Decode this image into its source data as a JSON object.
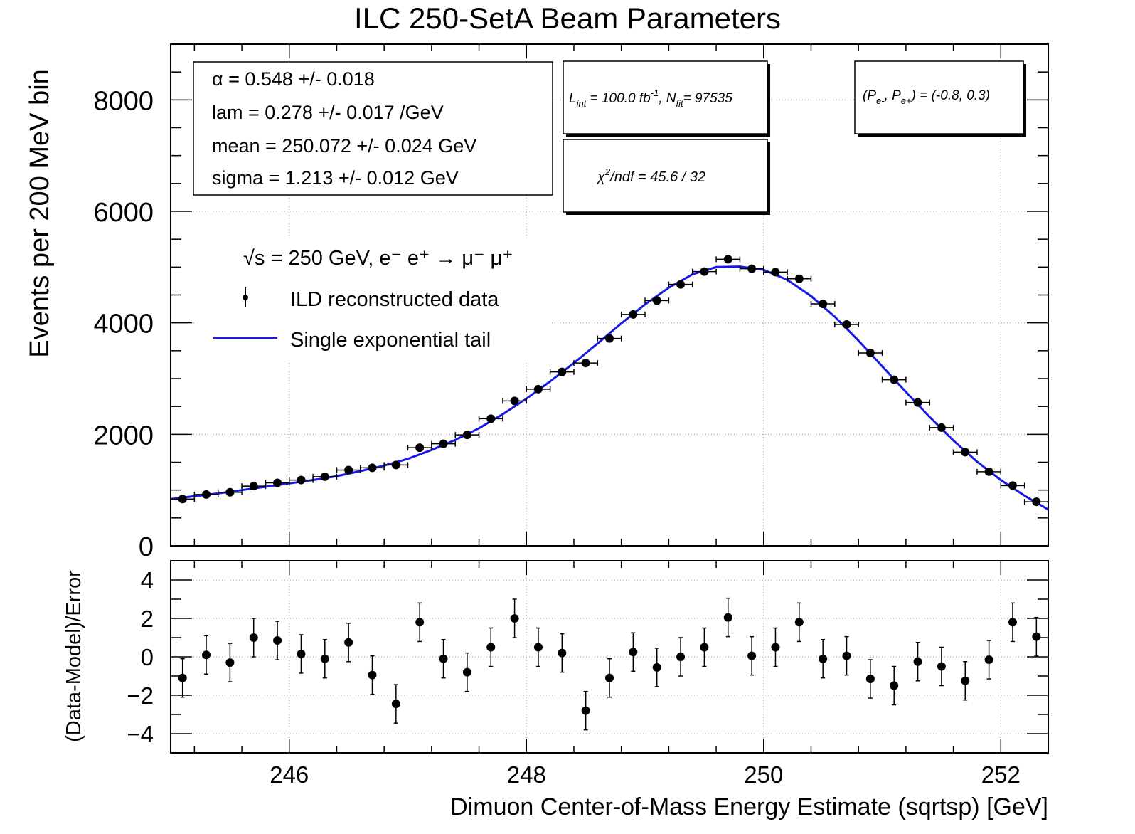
{
  "title": "ILC 250-SetA Beam Parameters",
  "fit_params": [
    {
      "label": "α =  0.548 +/- 0.018"
    },
    {
      "label": "lam =  0.278 +/- 0.017 /GeV"
    },
    {
      "label": "mean =  250.072 +/- 0.024 GeV"
    },
    {
      "label": "sigma =  1.213 +/- 0.012 GeV"
    }
  ],
  "lumi_box": {
    "lint": "L",
    "lint_sub": "int",
    "lint_val": " = 100.0 fb",
    "lint_sup": "-1",
    "nfit": ", N",
    "nfit_sub": "fit",
    "nfit_val": "= 97535"
  },
  "pol_box": {
    "p1": "(P",
    "p1_sub": "e-",
    "comma": ", P",
    "p2_sub": "e+",
    "val": ") = (-0.8, 0.3)"
  },
  "chi2_box": {
    "chi": "χ",
    "sup": "2",
    "rest": "/ndf =   45.6 /  32"
  },
  "legend": {
    "process": "√s = 250 GeV, e⁻ e⁺ → μ⁻ μ⁺",
    "data_label": "ILD reconstructed data",
    "fit_label": "Single exponential tail"
  },
  "colors": {
    "fit_line": "#1a1ae6",
    "data": "#000000",
    "grid": "#999999"
  },
  "chart_data": [
    {
      "type": "scatter",
      "panel": "main",
      "title": "ILC 250-SetA Beam Parameters",
      "xlabel": "Dimuon Center-of-Mass Energy Estimate (sqrtsp) [GeV]",
      "ylabel": "Events per 200 MeV bin",
      "xlim": [
        245.0,
        252.4
      ],
      "ylim": [
        0,
        9000
      ],
      "yticks": [
        0,
        2000,
        4000,
        6000,
        8000
      ],
      "xticks": [
        246,
        248,
        250,
        252
      ],
      "grid": true,
      "bin_width": 0.2,
      "series": [
        {
          "name": "ILD reconstructed data",
          "x": [
            245.1,
            245.3,
            245.5,
            245.7,
            245.9,
            246.1,
            246.3,
            246.5,
            246.7,
            246.9,
            247.1,
            247.3,
            247.5,
            247.7,
            247.9,
            248.1,
            248.3,
            248.5,
            248.7,
            248.9,
            249.1,
            249.3,
            249.5,
            249.7,
            249.9,
            250.1,
            250.3,
            250.5,
            250.7,
            250.9,
            251.1,
            251.3,
            251.5,
            251.7,
            251.9,
            252.1,
            252.3
          ],
          "y": [
            840,
            920,
            960,
            1070,
            1130,
            1180,
            1240,
            1360,
            1400,
            1450,
            1760,
            1830,
            1990,
            2280,
            2600,
            2810,
            3120,
            3280,
            3720,
            4150,
            4400,
            4690,
            4920,
            5140,
            4970,
            4910,
            4790,
            4340,
            3970,
            3460,
            2980,
            2570,
            2120,
            1680,
            1330,
            1080,
            790
          ]
        },
        {
          "name": "Single exponential tail",
          "x": [
            245.0,
            245.2,
            245.4,
            245.6,
            245.8,
            246.0,
            246.2,
            246.4,
            246.6,
            246.8,
            247.0,
            247.2,
            247.4,
            247.6,
            247.8,
            248.0,
            248.2,
            248.4,
            248.6,
            248.8,
            249.0,
            249.2,
            249.4,
            249.6,
            249.8,
            250.0,
            250.2,
            250.4,
            250.6,
            250.8,
            251.0,
            251.2,
            251.4,
            251.6,
            251.8,
            252.0,
            252.2,
            252.4
          ],
          "y": [
            840,
            890,
            940,
            1000,
            1060,
            1120,
            1180,
            1250,
            1340,
            1440,
            1560,
            1720,
            1900,
            2110,
            2360,
            2640,
            2950,
            3280,
            3630,
            3990,
            4330,
            4630,
            4870,
            5000,
            5010,
            4950,
            4770,
            4480,
            4110,
            3680,
            3220,
            2760,
            2310,
            1890,
            1510,
            1180,
            900,
            650
          ]
        }
      ]
    },
    {
      "type": "scatter",
      "panel": "residuals",
      "xlabel": "Dimuon Center-of-Mass Energy Estimate (sqrtsp) [GeV]",
      "ylabel": "(Data-Model)/Error",
      "xlim": [
        245.0,
        252.4
      ],
      "ylim": [
        -5,
        5
      ],
      "yticks": [
        -4,
        -2,
        0,
        2,
        4
      ],
      "ytick_labels": [
        "−4",
        "−2",
        "0",
        "2",
        "4"
      ],
      "xticks": [
        246,
        248,
        250,
        252
      ],
      "grid": true,
      "series": [
        {
          "name": "(Data-Model)/Error",
          "x": [
            245.1,
            245.3,
            245.5,
            245.7,
            245.9,
            246.1,
            246.3,
            246.5,
            246.7,
            246.9,
            247.1,
            247.3,
            247.5,
            247.7,
            247.9,
            248.1,
            248.3,
            248.5,
            248.7,
            248.9,
            249.1,
            249.3,
            249.5,
            249.7,
            249.9,
            250.1,
            250.3,
            250.5,
            250.7,
            250.9,
            251.1,
            251.3,
            251.5,
            251.7,
            251.9,
            252.1,
            252.3
          ],
          "y": [
            -1.1,
            0.1,
            -0.3,
            1.0,
            0.85,
            0.15,
            -0.1,
            0.75,
            -0.95,
            -2.45,
            1.8,
            -0.1,
            -0.8,
            0.5,
            2.0,
            0.5,
            0.2,
            -2.8,
            -1.1,
            0.25,
            -0.55,
            0.0,
            0.5,
            2.05,
            0.05,
            0.5,
            1.8,
            -0.1,
            0.05,
            -1.15,
            -1.5,
            -0.25,
            -0.5,
            -1.25,
            -0.15,
            1.8,
            1.05
          ],
          "error": 1.0
        }
      ]
    }
  ]
}
